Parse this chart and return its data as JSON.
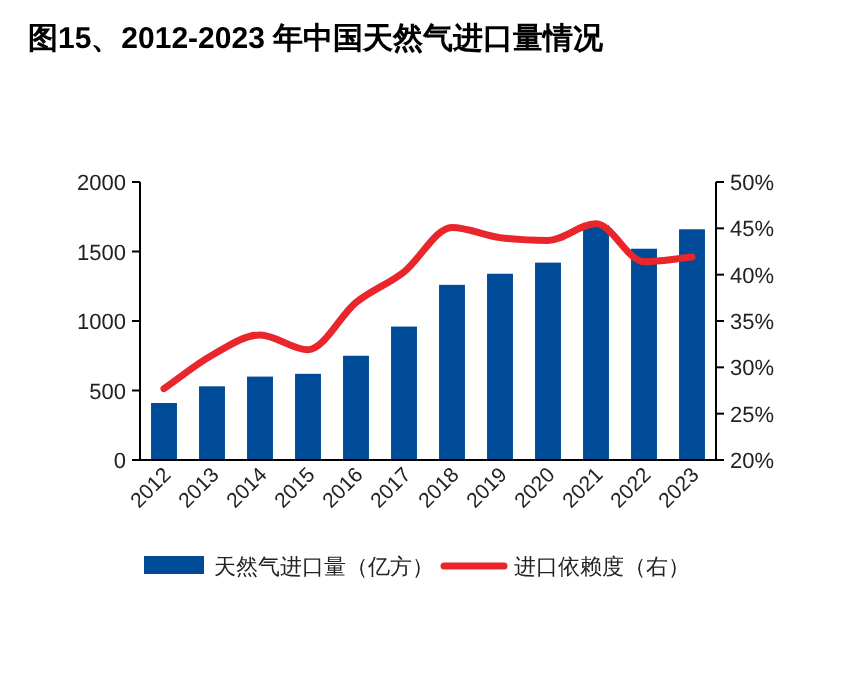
{
  "chart_data": {
    "type": "bar",
    "title": "图15、2012-2023 年中国天然气进口量情况",
    "categories": [
      "2012",
      "2013",
      "2014",
      "2015",
      "2016",
      "2017",
      "2018",
      "2019",
      "2020",
      "2021",
      "2022",
      "2023"
    ],
    "series": [
      {
        "name": "天然气进口量（亿方）",
        "color": "#004b97",
        "values": [
          410,
          530,
          600,
          620,
          750,
          960,
          1260,
          1340,
          1420,
          1690,
          1520,
          1660
        ]
      },
      {
        "name": "进口依赖度（右）",
        "type": "line",
        "axis": "y2",
        "color": "#e8262b",
        "values": [
          27.7,
          31.3,
          33.5,
          31.9,
          37.0,
          40.3,
          45.1,
          44.0,
          43.7,
          45.5,
          41.4,
          41.9
        ]
      }
    ],
    "ylim": [
      0,
      2000
    ],
    "yticks": [
      0,
      500,
      1000,
      1500,
      2000
    ],
    "y2lim": [
      20,
      50
    ],
    "y2ticks": [
      {
        "value": 20,
        "label": "20%"
      },
      {
        "value": 25,
        "label": "25%"
      },
      {
        "value": 30,
        "label": "30%"
      },
      {
        "value": 35,
        "label": "35%"
      },
      {
        "value": 40,
        "label": "40%"
      },
      {
        "value": 45,
        "label": "45%"
      },
      {
        "value": 50,
        "label": "50%"
      }
    ],
    "grid": false,
    "legend": "bottom"
  }
}
